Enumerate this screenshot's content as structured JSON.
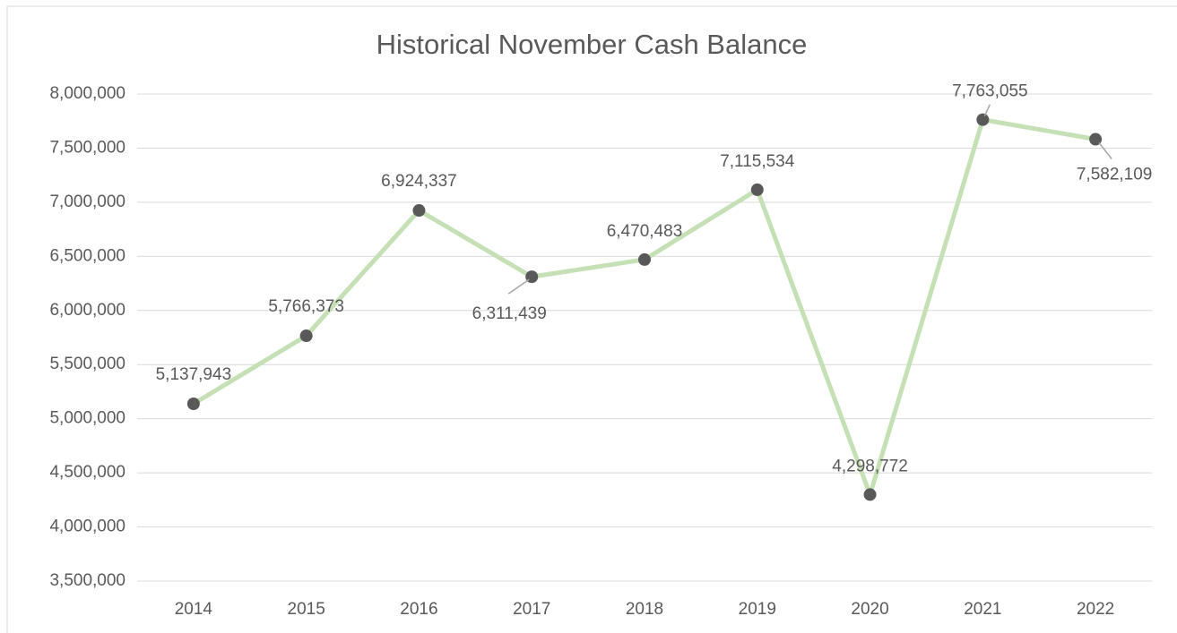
{
  "chart_data": {
    "type": "line",
    "title": "Historical November Cash Balance",
    "categories": [
      "2014",
      "2015",
      "2016",
      "2017",
      "2018",
      "2019",
      "2020",
      "2021",
      "2022"
    ],
    "series": [
      {
        "name": "Cash Balance",
        "color": "#c5e0b4",
        "marker_color": "#595959",
        "values": [
          5137943,
          5766373,
          6924337,
          6311439,
          6470483,
          7115534,
          4298772,
          7763055,
          7582109
        ],
        "value_labels": [
          "5,137,943",
          "5,766,373",
          "6,924,337",
          "6,311,439",
          "6,470,483",
          "7,115,534",
          "4,298,772",
          "7,763,055",
          "7,582,109"
        ]
      }
    ],
    "ylim": [
      3500000,
      8000000
    ],
    "yticks": [
      {
        "value": 3500000,
        "label": "3,500,000"
      },
      {
        "value": 4000000,
        "label": "4,000,000"
      },
      {
        "value": 4500000,
        "label": "4,500,000"
      },
      {
        "value": 5000000,
        "label": "5,000,000"
      },
      {
        "value": 5500000,
        "label": "5,500,000"
      },
      {
        "value": 6000000,
        "label": "6,000,000"
      },
      {
        "value": 6500000,
        "label": "6,500,000"
      },
      {
        "value": 7000000,
        "label": "7,000,000"
      },
      {
        "value": 7500000,
        "label": "7,500,000"
      },
      {
        "value": 8000000,
        "label": "8,000,000"
      }
    ],
    "grid": true
  }
}
